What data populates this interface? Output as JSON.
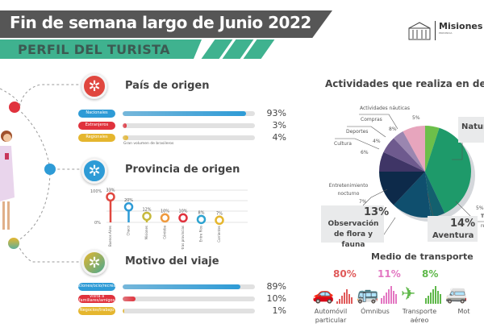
{
  "header": {
    "title": "Fin de semana largo de Junio 2022",
    "subtitle": "PERFIL DEL TURISTA",
    "logo_text": "Misiones",
    "logo_subtext": "PROVINCIA"
  },
  "colors": {
    "header_dark": "#565656",
    "header_green": "#3fb28f",
    "red": "#e0323d",
    "blue": "#2e9bd6",
    "yellow": "#e5b62e"
  },
  "chart_data": [
    {
      "type": "bar",
      "title": "País de origen",
      "categories": [
        "Nacionales",
        "Extranjeros",
        "Regionales"
      ],
      "values": [
        93,
        3,
        4
      ],
      "value_labels": [
        "93%",
        "3%",
        "4%"
      ],
      "note": "Gran volumen de brasileros",
      "ylim": [
        0,
        100
      ],
      "colors": [
        "#2e9bd6",
        "#e0323d",
        "#e5b62e"
      ]
    },
    {
      "type": "bar",
      "subtype": "lollipop",
      "title": "Provincia de origen",
      "categories": [
        "Buenos Aires",
        "Chaco",
        "Misiones",
        "Córdoba",
        "Otras provincias",
        "Entre Ríos",
        "Corrientes"
      ],
      "values": [
        33,
        20,
        12,
        10,
        10,
        8,
        7
      ],
      "value_labels": [
        "33%",
        "20%",
        "12%",
        "10%",
        "10%",
        "8%",
        "7%"
      ],
      "ytick_labels": [
        "100%",
        "0%"
      ],
      "grid": true,
      "colors": [
        "#e0473f",
        "#2e9bd6",
        "#c7b93c",
        "#ef9a3e",
        "#e0323d",
        "#2ea3d0",
        "#e5b62e"
      ]
    },
    {
      "type": "bar",
      "title": "Motivo del viaje",
      "categories": [
        "Vacaciones/ocio/recreación",
        "Visita a familiares/amigos",
        "Negocios/trabajo"
      ],
      "values": [
        89,
        10,
        1
      ],
      "value_labels": [
        "89%",
        "10%",
        "1%"
      ],
      "ylim": [
        0,
        100
      ],
      "colors": [
        "#2e9bd6",
        "#e0323d",
        "#e5b62e"
      ]
    },
    {
      "type": "pie",
      "title": "Actividades que realiza en desti",
      "slices": [
        {
          "label": "Actividades náuticas",
          "value": 5,
          "value_label": "5%",
          "color": "#6cbf4a"
        },
        {
          "label": "Natur",
          "value": 38,
          "value_label": "",
          "color": "#1e9a6a"
        },
        {
          "label": "T",
          "label2": "re",
          "value": 5,
          "value_label": "5%",
          "color": "#13606e"
        },
        {
          "label": "Aventura",
          "value": 14,
          "value_label": "14%",
          "color": "#0f4f6e"
        },
        {
          "label": "Observación de flora y fauna",
          "value": 13,
          "value_label": "13%",
          "color": "#0d2a4a"
        },
        {
          "label": "Entretenimiento nocturno",
          "value": 7,
          "value_label": "7%",
          "color": "#3f3566"
        },
        {
          "label": "Cultura",
          "value": 6,
          "value_label": "6%",
          "color": "#6e5a8e"
        },
        {
          "label": "Deportes",
          "value": 4,
          "value_label": "4%",
          "color": "#9a86b0"
        },
        {
          "label": "Compras",
          "value": 8,
          "value_label": "8%",
          "color": "#e7a5bd"
        }
      ]
    },
    {
      "type": "bar",
      "title": "Medio de transporte",
      "categories": [
        "Automóvil particular",
        "Ómnibus",
        "Transporte aéreo",
        "Mot"
      ],
      "values": [
        80,
        11,
        8,
        null
      ],
      "value_labels": [
        "80%",
        "11%",
        "8%",
        ""
      ],
      "colors": [
        "#e05a5a",
        "#e377c2",
        "#5fb84a",
        "#f0a030"
      ]
    }
  ]
}
